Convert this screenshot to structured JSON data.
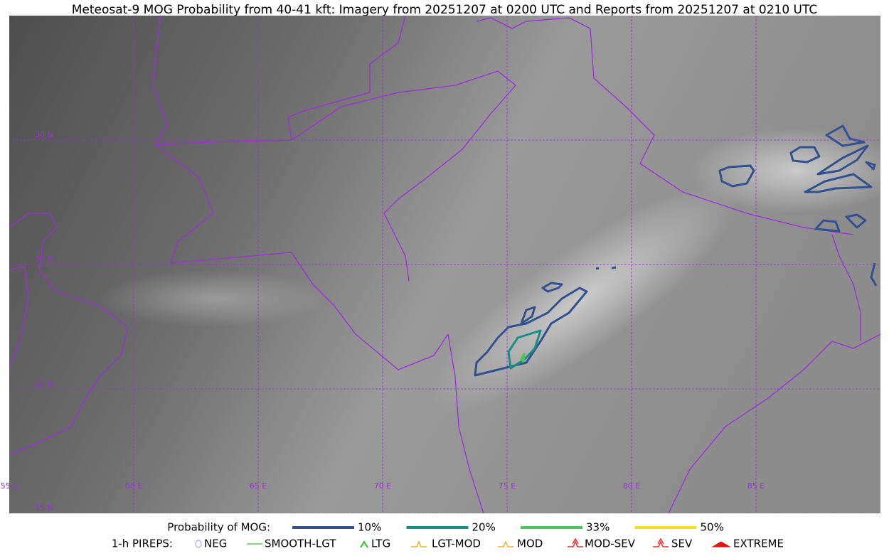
{
  "title": "Meteosat-9 MOG Probability from 40-41 kft: Imagery from 20251207 at 0200 UTC and Reports from 20251207 at 0210 UTC",
  "map": {
    "lat_labels": [
      "30 N",
      "25 N",
      "20 N",
      "15 N"
    ],
    "lon_labels": [
      "55 E",
      "60 E",
      "65 E",
      "70 E",
      "75 E",
      "80 E",
      "85 E"
    ]
  },
  "legend": {
    "probability": {
      "label": "Probability of MOG:",
      "items": [
        {
          "name": "10%",
          "color": "#34508f"
        },
        {
          "name": "20%",
          "color": "#1a8f80"
        },
        {
          "name": "33%",
          "color": "#4cc45a"
        },
        {
          "name": "50%",
          "color": "#f2e01a"
        }
      ]
    },
    "pireps": {
      "label": "1-h PIREPS:",
      "items": [
        {
          "name": "NEG",
          "color": "#b8b8f0"
        },
        {
          "name": "SMOOTH-LGT",
          "color": "#4cd04c"
        },
        {
          "name": "LTG",
          "color": "#22cc22"
        },
        {
          "name": "LGT-MOD",
          "color": "#f0b020"
        },
        {
          "name": "MOD",
          "color": "#f0b020"
        },
        {
          "name": "MOD-SEV",
          "color": "#e83030"
        },
        {
          "name": "SEV",
          "color": "#e83030"
        },
        {
          "name": "EXTREME",
          "color": "#e81010"
        }
      ]
    }
  }
}
